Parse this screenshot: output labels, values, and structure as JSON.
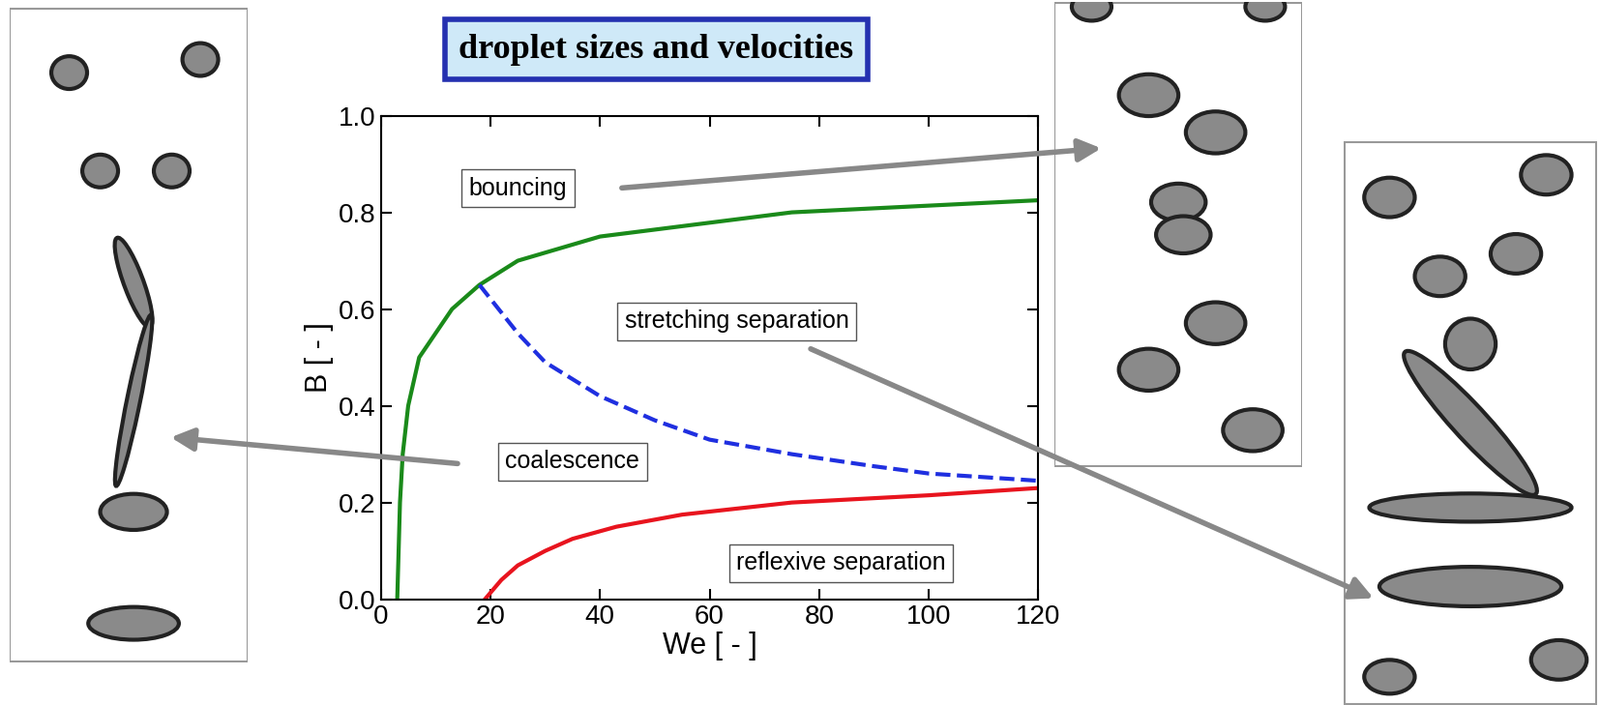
{
  "chart_data": {
    "type": "line",
    "title": "droplet sizes and velocities",
    "x_label": "We [ - ]",
    "y_label": "B [ - ]",
    "xlim": [
      0,
      120
    ],
    "ylim": [
      0,
      1.0
    ],
    "xticks": [
      0,
      20,
      40,
      60,
      80,
      100,
      120
    ],
    "yticks": [
      {
        "value": 0,
        "label": "0.0"
      },
      {
        "value": 0.2,
        "label": "0.2"
      },
      {
        "value": 0.4,
        "label": "0.4"
      },
      {
        "value": 0.6,
        "label": "0.6"
      },
      {
        "value": 0.8,
        "label": "0.8"
      },
      {
        "value": 1.0,
        "label": "1.0"
      }
    ],
    "grid": false,
    "series": [
      {
        "color": "#1a8a1a",
        "line_style": "solid",
        "x": [
          3,
          3.5,
          4,
          5,
          7,
          10,
          13,
          18,
          25,
          40,
          75,
          120
        ],
        "values": [
          0,
          0.2,
          0.3,
          0.4,
          0.5,
          0.55,
          0.6,
          0.65,
          0.7,
          0.75,
          0.8,
          0.825
        ]
      },
      {
        "color": "#1f2fe0",
        "line_style": "dashed",
        "x": [
          18,
          25,
          30,
          40,
          50,
          60,
          75,
          90,
          100,
          120
        ],
        "values": [
          0.65,
          0.55,
          0.49,
          0.42,
          0.37,
          0.33,
          0.3,
          0.275,
          0.26,
          0.245
        ]
      },
      {
        "color": "#e8141e",
        "line_style": "solid",
        "x": [
          19,
          22,
          25,
          30,
          35,
          43,
          55,
          75,
          100,
          120
        ],
        "values": [
          0,
          0.04,
          0.07,
          0.1,
          0.125,
          0.15,
          0.175,
          0.2,
          0.215,
          0.23
        ]
      }
    ],
    "annotations": [
      "bouncing",
      "stretching separation",
      "coalescence",
      "reflexive separation"
    ]
  }
}
